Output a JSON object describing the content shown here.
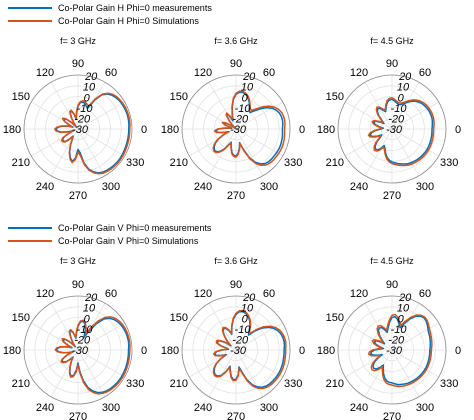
{
  "colors": {
    "measurement": "#0072bd",
    "simulation": "#d95319",
    "grid": "#e2e2e2",
    "frame": "#8c8c8c"
  },
  "chart_data": [
    {
      "type": "polar",
      "title": "f= 3 GHz",
      "legend": [
        "Co-Polar Gain H Phi=0 measurements",
        "Co-Polar Gain H Phi=0 Simulations"
      ],
      "legend_placement": "top-left",
      "theta_ticks": [
        "90",
        "60",
        "0",
        "330",
        "300",
        "270",
        "240",
        "210",
        "180",
        "150",
        "120"
      ],
      "r_ticks": [
        "20",
        "10",
        "0",
        "-10",
        "-20",
        "-30"
      ],
      "r_range": [
        -30,
        20
      ],
      "series": [
        {
          "name": "Co-Polar Gain H Phi=0 measurements",
          "r": [
            17,
            17.3,
            17.5,
            17.5,
            17.4,
            17.1,
            16.8,
            16.3,
            15.5,
            14.3,
            12.3,
            8.5,
            0.8,
            -9,
            -7.5,
            -5.5,
            -4.8,
            -5.5,
            -9,
            -15,
            -21,
            -16,
            -12.5,
            -13,
            -18,
            -24,
            -28,
            -22,
            -16,
            -13.5,
            -16,
            -21,
            -25,
            -20,
            -15,
            -11.5,
            -9.5,
            -10.5,
            -14,
            -20,
            -26,
            -21,
            -15,
            -12.5,
            -12.5,
            -14,
            -18,
            -22,
            -20,
            -14,
            -7.5,
            -2.5,
            0.5,
            -3,
            -11,
            -8,
            2,
            8.5,
            12.3,
            14.8,
            16.1,
            16.7,
            17,
            17.3,
            17.5,
            17.5,
            17.4,
            17.2,
            17.1,
            17,
            17,
            17,
            17
          ]
        },
        {
          "name": "Co-Polar Gain H Phi=0 Simulations",
          "r": [
            18,
            18.3,
            18.5,
            18.5,
            18.4,
            18.2,
            17.8,
            17.3,
            16.6,
            15.4,
            13.3,
            9.5,
            2.3,
            -6.5,
            -5.5,
            -4,
            -3.5,
            -4.5,
            -8,
            -14,
            -20,
            -15,
            -11.5,
            -12,
            -17,
            -23,
            -27,
            -21,
            -15,
            -12.5,
            -15,
            -20,
            -24,
            -19,
            -14,
            -10.5,
            -8.5,
            -9.5,
            -13,
            -19,
            -25,
            -20,
            -14,
            -11.5,
            -11.5,
            -13,
            -17,
            -21,
            -19,
            -13,
            -6.5,
            -1.5,
            1.5,
            -1.5,
            -8.5,
            -5.5,
            3.5,
            9.5,
            13.3,
            15.8,
            17.1,
            17.7,
            18.1,
            18.3,
            18.5,
            18.5,
            18.4,
            18.2,
            18.1,
            18,
            18,
            18,
            18
          ]
        }
      ]
    },
    {
      "type": "polar",
      "title": "f= 3.6 GHz",
      "theta_ticks": [
        "90",
        "60",
        "0",
        "330",
        "300",
        "270",
        "240",
        "210",
        "180",
        "150",
        "120"
      ],
      "r_ticks": [
        "20",
        "10",
        "0",
        "-10",
        "-20",
        "-30"
      ],
      "r_range": [
        -30,
        20
      ],
      "series": [
        {
          "name": "Co-Polar Gain H Phi=0 measurements",
          "r": [
            13,
            13.5,
            13.8,
            13.6,
            12.9,
            11.2,
            8.5,
            4.5,
            -1,
            -6.5,
            -10,
            -8.5,
            -5,
            -1.5,
            1.5,
            3.5,
            4.5,
            4,
            2,
            -2.5,
            -10,
            -18,
            -22,
            -18,
            -14,
            -15,
            -21,
            -27,
            -30,
            -24,
            -19,
            -17,
            -20,
            -25,
            -26,
            -20,
            -14,
            -11,
            -12.5,
            -18,
            -23,
            -17,
            -11,
            -6.5,
            -3.5,
            -2,
            -2.5,
            -5,
            -9,
            -14,
            -17,
            -13,
            -8,
            -5.5,
            -5,
            -7.5,
            -12,
            -17,
            -10,
            -1,
            5.5,
            9.5,
            11.8,
            12.8,
            13,
            13.2,
            13.5,
            13.8,
            13.9,
            13.7,
            13.5,
            13.2,
            13
          ]
        },
        {
          "name": "Co-Polar Gain H Phi=0 Simulations",
          "r": [
            15,
            15.5,
            15.8,
            15.6,
            14.9,
            13.3,
            10.8,
            7,
            2,
            -3.5,
            -7.5,
            -7,
            -4,
            -0.5,
            2.5,
            4.5,
            5.5,
            5,
            3,
            -1.5,
            -8.5,
            -16,
            -20,
            -17,
            -13,
            -14,
            -20,
            -26,
            -29,
            -23,
            -18,
            -16,
            -19,
            -24,
            -25,
            -19,
            -13,
            -10,
            -11.5,
            -17,
            -22,
            -16,
            -10,
            -5.5,
            -2.5,
            -1,
            -1.5,
            -4,
            -8,
            -13,
            -16,
            -12,
            -7,
            -4.5,
            -4,
            -6.5,
            -11,
            -16,
            -8.5,
            0.5,
            7,
            11,
            13.5,
            14.6,
            15,
            15.2,
            15.5,
            15.8,
            15.9,
            15.7,
            15.5,
            15.2,
            15
          ]
        }
      ]
    },
    {
      "type": "polar",
      "title": "f= 4.5 GHz",
      "theta_ticks": [
        "90",
        "60",
        "0",
        "330",
        "300",
        "270",
        "240",
        "210",
        "180",
        "150",
        "120"
      ],
      "r_ticks": [
        "20",
        "10",
        "0",
        "-10",
        "-20",
        "-30"
      ],
      "r_range": [
        -30,
        20
      ],
      "series": [
        {
          "name": "Co-Polar Gain H Phi=0 measurements",
          "r": [
            7,
            7.5,
            8,
            8.3,
            8.3,
            8.1,
            7.7,
            7.2,
            6.4,
            5.2,
            3.5,
            1.3,
            -1.5,
            -4,
            -6,
            -6.5,
            -5.5,
            -4,
            -2.5,
            -3,
            -5,
            -9,
            -13,
            -11,
            -8,
            -7,
            -9,
            -13,
            -18,
            -21,
            -17,
            -13,
            -12,
            -14,
            -18,
            -22,
            -20,
            -15,
            -11,
            -9,
            -10,
            -14,
            -19,
            -17,
            -12,
            -8,
            -6,
            -6.5,
            -9,
            -13,
            -11,
            -7,
            -3.5,
            -1,
            0.5,
            1.5,
            2.5,
            3.5,
            4.5,
            5.3,
            5.9,
            6.3,
            6.7,
            7,
            7.2,
            7.4,
            7.5,
            7.5,
            7.4,
            7.3,
            7.2,
            7.1,
            7
          ]
        },
        {
          "name": "Co-Polar Gain H Phi=0 Simulations",
          "r": [
            8.5,
            9,
            9.5,
            9.8,
            9.8,
            9.6,
            9.2,
            8.7,
            7.9,
            6.7,
            5,
            2.8,
            0,
            -2.5,
            -4.5,
            -5,
            -4,
            -2.5,
            -1,
            -1.5,
            -3.5,
            -7.5,
            -11.5,
            -9.5,
            -6.5,
            -5.5,
            -7.5,
            -11.5,
            -16.5,
            -19.5,
            -15.5,
            -11.5,
            -10.5,
            -12.5,
            -16.5,
            -20.5,
            -18.5,
            -13.5,
            -9.5,
            -7.5,
            -8.5,
            -12.5,
            -17.5,
            -15.5,
            -10.5,
            -6.5,
            -4.5,
            -5,
            -7.5,
            -11.5,
            -9.5,
            -5.5,
            -2,
            0.5,
            2,
            3,
            4,
            5,
            6,
            6.8,
            7.4,
            7.8,
            8.2,
            8.5,
            8.7,
            8.9,
            9,
            9,
            8.9,
            8.8,
            8.7,
            8.6,
            8.5
          ]
        }
      ]
    },
    {
      "type": "polar",
      "title": "f= 3 GHz",
      "legend": [
        "Co-Polar Gain V Phi=0 measurements",
        "Co-Polar Gain V Phi=0 Simulations"
      ],
      "legend_placement": "top-left",
      "theta_ticks": [
        "90",
        "60",
        "0",
        "330",
        "300",
        "270",
        "240",
        "210",
        "180",
        "150",
        "120"
      ],
      "r_ticks": [
        "20",
        "10",
        "0",
        "-10",
        "-20",
        "-30"
      ],
      "r_range": [
        -30,
        20
      ],
      "series": [
        {
          "name": "Co-Polar Gain V Phi=0 measurements",
          "r": [
            16.8,
            17.2,
            17.4,
            17.3,
            17.1,
            16.7,
            16.1,
            15.2,
            13.8,
            11.5,
            7.5,
            0,
            -10,
            -17,
            -10,
            -5,
            -3,
            -4,
            -8,
            -14,
            -19,
            -14,
            -11,
            -12,
            -17,
            -22,
            -26,
            -20,
            -15,
            -13,
            -15,
            -20,
            -24,
            -19,
            -14,
            -11,
            -10,
            -12,
            -16,
            -21,
            -25,
            -19,
            -14,
            -12,
            -12.5,
            -15,
            -19,
            -22,
            -18,
            -13,
            -8,
            -5,
            -6,
            -11,
            -18,
            -10,
            -1,
            6,
            10.5,
            13.5,
            15.2,
            16.1,
            16.6,
            16.9,
            17.2,
            17.3,
            17.3,
            17.2,
            17.1,
            17,
            16.9,
            16.8,
            16.8
          ]
        },
        {
          "name": "Co-Polar Gain V Phi=0 Simulations",
          "r": [
            18,
            18.3,
            18.5,
            18.4,
            18.3,
            18,
            17.5,
            16.7,
            15.4,
            13.3,
            9.7,
            3,
            -6,
            -13,
            -8,
            -4,
            -2,
            -3,
            -7,
            -13,
            -18,
            -13,
            -10,
            -11,
            -16,
            -21,
            -25,
            -19,
            -14,
            -12,
            -14,
            -19,
            -23,
            -18,
            -13,
            -10,
            -9,
            -11,
            -15,
            -20,
            -24,
            -18,
            -13,
            -11,
            -11.5,
            -14,
            -18,
            -21,
            -17,
            -12,
            -7,
            -4,
            -5,
            -9.5,
            -16,
            -8,
            1,
            8,
            12,
            14.8,
            16.3,
            17.2,
            17.7,
            18,
            18.3,
            18.4,
            18.4,
            18.3,
            18.2,
            18.1,
            18,
            18,
            18
          ]
        }
      ]
    },
    {
      "type": "polar",
      "title": "f= 3.6 GHz",
      "theta_ticks": [
        "90",
        "60",
        "0",
        "330",
        "300",
        "270",
        "240",
        "210",
        "180",
        "150",
        "120"
      ],
      "r_ticks": [
        "20",
        "10",
        "0",
        "-10",
        "-20",
        "-30"
      ],
      "r_range": [
        -30,
        20
      ],
      "series": [
        {
          "name": "Co-Polar Gain V Phi=0 measurements",
          "r": [
            14.5,
            15,
            15.2,
            14.9,
            14.1,
            12.6,
            10.2,
            6.5,
            1.5,
            -5,
            -12,
            -9,
            -4,
            0,
            3,
            5,
            6,
            5.5,
            3,
            -1.5,
            -8,
            -15,
            -11,
            -8,
            -7,
            -9,
            -14,
            -19,
            -24,
            -18,
            -13,
            -11,
            -12,
            -16,
            -22,
            -23,
            -17,
            -12,
            -10,
            -11,
            -15,
            -20,
            -14,
            -8,
            -4,
            -1.5,
            0,
            -0.5,
            -3,
            -8,
            -14,
            -10,
            -5,
            -2.5,
            -3,
            -7,
            -14,
            -9,
            -1,
            5.5,
            9.5,
            12,
            13.5,
            14.2,
            14.5,
            14.8,
            15,
            15.1,
            15,
            14.9,
            14.7,
            14.6,
            14.5
          ]
        },
        {
          "name": "Co-Polar Gain V Phi=0 Simulations",
          "r": [
            16,
            16.4,
            16.6,
            16.3,
            15.6,
            14.2,
            11.9,
            8.4,
            3.5,
            -3,
            -10,
            -8,
            -3,
            1,
            4,
            6,
            7,
            6.5,
            4,
            -0.5,
            -7,
            -14,
            -10,
            -7,
            -6,
            -8,
            -13,
            -18,
            -23,
            -17,
            -12,
            -10,
            -11,
            -15,
            -21,
            -22,
            -16,
            -11,
            -9,
            -10,
            -14,
            -19,
            -13,
            -7,
            -3,
            -0.5,
            1,
            0.5,
            -2,
            -7,
            -13,
            -9,
            -4,
            -1.5,
            -2,
            -6,
            -12.5,
            -7.5,
            0.5,
            7,
            11,
            13.5,
            15,
            15.7,
            16,
            16.3,
            16.5,
            16.6,
            16.5,
            16.4,
            16.2,
            16.1,
            16
          ]
        }
      ]
    },
    {
      "type": "polar",
      "title": "f= 4.5 GHz",
      "theta_ticks": [
        "90",
        "60",
        "0",
        "330",
        "300",
        "270",
        "240",
        "210",
        "180",
        "150",
        "120"
      ],
      "r_ticks": [
        "20",
        "10",
        "0",
        "-10",
        "-20",
        "-30"
      ],
      "r_range": [
        -30,
        20
      ],
      "series": [
        {
          "name": "Co-Polar Gain V Phi=0 measurements",
          "r": [
            5,
            5.5,
            6,
            6.5,
            7,
            7.5,
            8.5,
            10,
            11.5,
            12,
            11,
            8,
            3,
            -3,
            -8,
            -5,
            -1,
            1,
            0,
            -4,
            -9,
            -13,
            -10,
            -7,
            -6.5,
            -8,
            -12,
            -17,
            -21,
            -17,
            -13,
            -12,
            -14,
            -18,
            -22,
            -19,
            -14,
            -11,
            -10,
            -12,
            -16,
            -20,
            -15,
            -10,
            -7,
            -6,
            -7,
            -10,
            -14,
            -11,
            -7,
            -3.5,
            -1,
            0,
            0.5,
            1.5,
            2.5,
            3,
            3.5,
            4,
            4.3,
            4.6,
            4.8,
            5,
            5.2,
            5.3,
            5.4,
            5.4,
            5.3,
            5.2,
            5.1,
            5,
            5
          ]
        },
        {
          "name": "Co-Polar Gain V Phi=0 Simulations",
          "r": [
            6.5,
            7,
            7.5,
            8,
            8.5,
            9,
            10,
            11.3,
            12.5,
            13,
            12,
            9.5,
            5,
            -0.5,
            -5.5,
            -3,
            1,
            3,
            2,
            -2,
            -7,
            -11,
            -8,
            -5,
            -4.5,
            -6,
            -10,
            -15,
            -19,
            -15,
            -11,
            -10,
            -12,
            -16,
            -20,
            -17,
            -12,
            -9,
            -8,
            -10,
            -14,
            -18,
            -13,
            -8,
            -5,
            -4,
            -5,
            -8,
            -12,
            -9,
            -5,
            -1.5,
            1,
            2,
            2.5,
            3.5,
            4.3,
            4.8,
            5.2,
            5.5,
            5.8,
            6,
            6.2,
            6.4,
            6.5,
            6.6,
            6.7,
            6.7,
            6.6,
            6.6,
            6.5,
            6.5,
            6.5
          ]
        }
      ]
    }
  ]
}
